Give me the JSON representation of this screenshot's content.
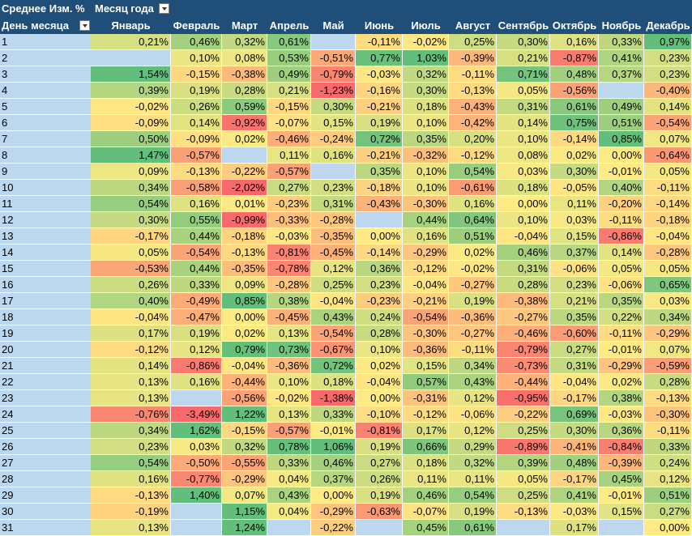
{
  "pivot": {
    "value_field": "Среднее Изм. %",
    "column_field": "Месяц года",
    "row_field": "День месяца",
    "filter_icon": "chevron-down-icon",
    "months": [
      "Январь",
      "Февраль",
      "Март",
      "Апрель",
      "Май",
      "Июнь",
      "Июль",
      "Август",
      "Сентябрь",
      "Октябрь",
      "Ноябрь",
      "Декабрь"
    ],
    "colors": {
      "header_bg": "#1f4e79",
      "day_bg": "#bdd7ee",
      "blank_bg": "#bdd7ee",
      "red": "#f8696b",
      "yellow": "#ffeb84",
      "green": "#63be7b"
    },
    "rows": [
      {
        "day": "1",
        "values": [
          "0,21%",
          "0,46%",
          "0,32%",
          "0,61%",
          null,
          "-0,11%",
          "-0,02%",
          "0,25%",
          "0,30%",
          "0,16%",
          "0,33%",
          "0,97%"
        ]
      },
      {
        "day": "2",
        "values": [
          null,
          "0,10%",
          "0,08%",
          "0,53%",
          "-0,51%",
          "0,77%",
          "1,03%",
          "-0,39%",
          "0,21%",
          "-0,87%",
          "0,41%",
          "0,23%"
        ]
      },
      {
        "day": "3",
        "values": [
          "1,54%",
          "-0,15%",
          "-0,38%",
          "0,49%",
          "-0,79%",
          "-0,03%",
          "0,32%",
          "-0,11%",
          "0,71%",
          "0,48%",
          "0,37%",
          "0,23%"
        ]
      },
      {
        "day": "4",
        "values": [
          "0,39%",
          "0,19%",
          "0,28%",
          "0,21%",
          "-1,23%",
          "-0,16%",
          "0,30%",
          "-0,13%",
          "0,05%",
          "-0,56%",
          null,
          "-0,40%"
        ]
      },
      {
        "day": "5",
        "values": [
          "-0,02%",
          "0,26%",
          "0,59%",
          "-0,15%",
          "0,30%",
          "-0,21%",
          "0,18%",
          "-0,43%",
          "0,31%",
          "0,61%",
          "0,49%",
          "0,14%"
        ]
      },
      {
        "day": "6",
        "values": [
          "-0,09%",
          "0,14%",
          "-0,92%",
          "-0,07%",
          "0,15%",
          "0,19%",
          "0,10%",
          "-0,42%",
          "0,14%",
          "0,75%",
          "0,51%",
          "-0,54%"
        ]
      },
      {
        "day": "7",
        "values": [
          "0,50%",
          "-0,09%",
          "0,02%",
          "-0,46%",
          "-0,24%",
          "0,72%",
          "0,35%",
          "0,20%",
          "0,10%",
          "-0,14%",
          "0,85%",
          "0,07%"
        ]
      },
      {
        "day": "8",
        "values": [
          "1,47%",
          "-0,57%",
          null,
          "0,11%",
          "0,16%",
          "-0,21%",
          "-0,32%",
          "-0,12%",
          "0,08%",
          "0,02%",
          "0,00%",
          "-0,64%"
        ]
      },
      {
        "day": "9",
        "values": [
          "0,09%",
          "-0,13%",
          "-0,22%",
          "-0,57%",
          null,
          "0,35%",
          "0,10%",
          "0,54%",
          "0,03%",
          "0,30%",
          "-0,01%",
          "0,05%"
        ]
      },
      {
        "day": "10",
        "values": [
          "0,34%",
          "-0,58%",
          "-2,02%",
          "0,27%",
          "0,23%",
          "-0,18%",
          "0,10%",
          "-0,61%",
          "0,18%",
          "-0,05%",
          "0,40%",
          "-0,11%"
        ]
      },
      {
        "day": "11",
        "values": [
          "0,54%",
          "0,16%",
          "0,01%",
          "-0,23%",
          "0,31%",
          "-0,43%",
          "-0,30%",
          "0,16%",
          "0,00%",
          "0,11%",
          "-0,20%",
          "-0,14%"
        ]
      },
      {
        "day": "12",
        "values": [
          "0,30%",
          "0,55%",
          "-0,99%",
          "-0,33%",
          "-0,28%",
          null,
          "0,44%",
          "0,64%",
          "0,10%",
          "0,03%",
          "-0,11%",
          "-0,18%"
        ]
      },
      {
        "day": "13",
        "values": [
          "-0,17%",
          "0,44%",
          "-0,18%",
          "-0,03%",
          "-0,35%",
          "0,00%",
          "0,16%",
          "0,51%",
          "-0,04%",
          "0,15%",
          "-0,86%",
          "-0,04%"
        ]
      },
      {
        "day": "14",
        "values": [
          "0,05%",
          "-0,54%",
          "-0,13%",
          "-0,81%",
          "-0,45%",
          "-0,14%",
          "-0,29%",
          "0,02%",
          "0,46%",
          "0,37%",
          "0,14%",
          "-0,28%"
        ]
      },
      {
        "day": "15",
        "values": [
          "-0,53%",
          "0,44%",
          "-0,35%",
          "-0,78%",
          "0,12%",
          "0,36%",
          "-0,12%",
          "-0,02%",
          "0,31%",
          "-0,06%",
          "0,05%",
          "0,05%"
        ]
      },
      {
        "day": "16",
        "values": [
          "0,26%",
          "0,33%",
          "0,09%",
          "-0,28%",
          "0,25%",
          "0,23%",
          "-0,04%",
          "-0,27%",
          "0,28%",
          "0,23%",
          "-0,06%",
          "0,65%"
        ]
      },
      {
        "day": "17",
        "values": [
          "0,40%",
          "-0,49%",
          "0,85%",
          "0,38%",
          "-0,04%",
          "-0,23%",
          "-0,21%",
          "0,19%",
          "-0,38%",
          "0,21%",
          "0,35%",
          "0,03%"
        ]
      },
      {
        "day": "18",
        "values": [
          "-0,04%",
          "-0,47%",
          "0,00%",
          "-0,45%",
          "0,43%",
          "0,24%",
          "-0,54%",
          "-0,36%",
          "-0,27%",
          "0,35%",
          "0,22%",
          "0,34%"
        ]
      },
      {
        "day": "19",
        "values": [
          "0,17%",
          "0,19%",
          "0,02%",
          "0,13%",
          "-0,54%",
          "0,28%",
          "-0,30%",
          "-0,27%",
          "-0,46%",
          "-0,60%",
          "-0,11%",
          "-0,29%"
        ]
      },
      {
        "day": "20",
        "values": [
          "-0,12%",
          "0,12%",
          "0,79%",
          "0,73%",
          "-0,67%",
          "0,10%",
          "-0,36%",
          "-0,11%",
          "-0,79%",
          "0,27%",
          "-0,01%",
          "0,07%"
        ]
      },
      {
        "day": "21",
        "values": [
          "0,14%",
          "-0,86%",
          "-0,04%",
          "-0,36%",
          "0,72%",
          "0,02%",
          "0,15%",
          "0,34%",
          "-0,73%",
          "0,31%",
          "-0,29%",
          "-0,59%"
        ]
      },
      {
        "day": "22",
        "values": [
          "0,13%",
          "0,16%",
          "-0,44%",
          "0,10%",
          "0,18%",
          "-0,04%",
          "0,57%",
          "0,43%",
          "-0,44%",
          "-0,04%",
          "0,02%",
          "0,28%"
        ]
      },
      {
        "day": "23",
        "values": [
          "0,13%",
          null,
          "-0,56%",
          "-0,02%",
          "-1,38%",
          "0,00%",
          "-0,31%",
          "0,12%",
          "-0,95%",
          "-0,17%",
          "0,38%",
          "-0,13%"
        ]
      },
      {
        "day": "24",
        "values": [
          "-0,76%",
          "-3,49%",
          "1,22%",
          "0,13%",
          "0,33%",
          "-0,10%",
          "-0,12%",
          "-0,06%",
          "-0,22%",
          "0,69%",
          "-0,03%",
          "-0,30%"
        ]
      },
      {
        "day": "25",
        "values": [
          "0,34%",
          "1,62%",
          "-0,15%",
          "-0,57%",
          "-0,01%",
          "-0,81%",
          "0,17%",
          "0,12%",
          "0,25%",
          "0,30%",
          "0,36%",
          "-0,11%"
        ]
      },
      {
        "day": "26",
        "values": [
          "0,23%",
          "0,03%",
          "0,32%",
          "0,78%",
          "1,06%",
          "0,19%",
          "0,66%",
          "0,29%",
          "-0,89%",
          "-0,41%",
          "-0,84%",
          "0,33%"
        ]
      },
      {
        "day": "27",
        "values": [
          "0,54%",
          "-0,50%",
          "-0,55%",
          "0,33%",
          "0,46%",
          "0,27%",
          "0,18%",
          "0,32%",
          "0,39%",
          "0,48%",
          "-0,39%",
          "0,24%"
        ]
      },
      {
        "day": "28",
        "values": [
          "0,16%",
          "-0,77%",
          "-0,29%",
          "0,04%",
          "0,37%",
          "0,26%",
          "0,11%",
          "0,11%",
          "0,05%",
          "-0,17%",
          "0,45%",
          "0,12%"
        ]
      },
      {
        "day": "29",
        "values": [
          "-0,13%",
          "1,40%",
          "0,07%",
          "0,43%",
          "0,00%",
          "0,19%",
          "0,46%",
          "0,54%",
          "0,25%",
          "0,41%",
          "-0,01%",
          "0,51%"
        ]
      },
      {
        "day": "30",
        "values": [
          "-0,19%",
          null,
          "1,15%",
          "0,04%",
          "-0,29%",
          "-0,63%",
          "-0,07%",
          "0,19%",
          "-0,13%",
          "-0,03%",
          "0,15%",
          "0,27%"
        ]
      },
      {
        "day": "31",
        "values": [
          "0,13%",
          null,
          "1,24%",
          null,
          "-0,22%",
          null,
          "0,45%",
          "0,61%",
          null,
          "0,17%",
          null,
          "0,00%"
        ]
      }
    ]
  }
}
